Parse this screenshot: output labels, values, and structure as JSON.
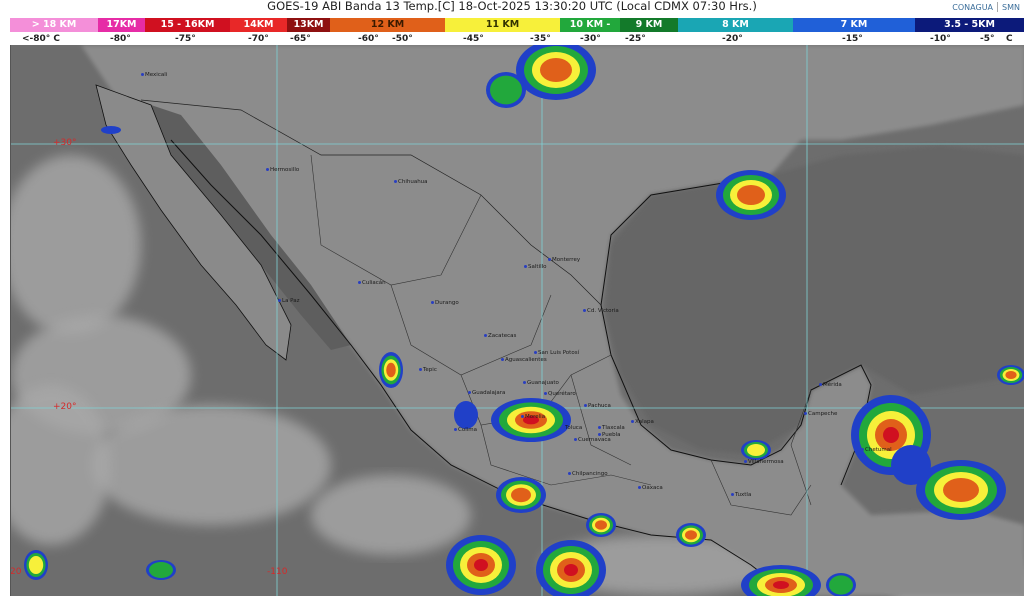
{
  "header": {
    "title": "GOES-19 ABI Banda 13 Temp.[C] 18-Oct-2025 13:30:20 UTC (Local CDMX  07:30 Hrs.)",
    "logos": [
      "CONAGUA",
      "SMN"
    ]
  },
  "scale": {
    "segments": [
      {
        "label": "> 18 KM",
        "color": "#f48fd9",
        "text_color": "#ffffff"
      },
      {
        "label": "17KM",
        "color": "#e62ca6",
        "text_color": "#ffffff"
      },
      {
        "label": "15 - 16KM",
        "color": "#d01020",
        "text_color": "#ffffff"
      },
      {
        "label": "14KM",
        "color": "#e82828",
        "text_color": "#ffffff"
      },
      {
        "label": "13KM",
        "color": "#8e1010",
        "text_color": "#ffffff"
      },
      {
        "label": "12 KM",
        "color": "#e0601a",
        "text_color": "#3a1a00"
      },
      {
        "label": "11 KM",
        "color": "#f7f03a",
        "text_color": "#333300"
      },
      {
        "label": "10 KM -",
        "color": "#22a83c",
        "text_color": "#ffffff"
      },
      {
        "label": "9 KM",
        "color": "#137a2a",
        "text_color": "#ffffff"
      },
      {
        "label": "8 KM",
        "color": "#1aa6b4",
        "text_color": "#ffffff"
      },
      {
        "label": "7 KM",
        "color": "#2060d8",
        "text_color": "#ffffff"
      },
      {
        "label": "3.5 - 5KM",
        "color": "#0c1a7a",
        "text_color": "#ffffff"
      }
    ],
    "ticks": [
      "<-80° C",
      "-80°",
      "-75°",
      "-70°",
      "-65°",
      "-60°",
      "-50°",
      "-45°",
      "-35°",
      "-30°",
      "-25°",
      "-20°",
      "-15°",
      "-10°",
      "-5°",
      "C"
    ]
  },
  "map": {
    "grid_labels": {
      "lat_30": "+30°",
      "lat_20": "+20°",
      "lon_120": "-120",
      "lon_110": "-110"
    },
    "cities": [
      "Mexicali",
      "Hermosillo",
      "Chihuahua",
      "La Paz",
      "Culiacán",
      "Durango",
      "Saltillo",
      "Monterrey",
      "Cd. Victoria",
      "Zacatecas",
      "San Luis Potosí",
      "Aguascalientes",
      "Tepic",
      "Guadalajara",
      "Guanajuato",
      "Querétaro",
      "Pachuca",
      "Morelia",
      "Colima",
      "Toluca",
      "Tlaxcala",
      "Puebla",
      "Cuernavaca",
      "Xalapa",
      "Chilpancingo",
      "Oaxaca",
      "Villahermosa",
      "Tuxtla",
      "Campeche",
      "Mérida",
      "Chetumal"
    ],
    "ocean_color": "#6d6d6d",
    "land_color": "#8c8c8c",
    "grid_color": "#7fd3d6"
  }
}
